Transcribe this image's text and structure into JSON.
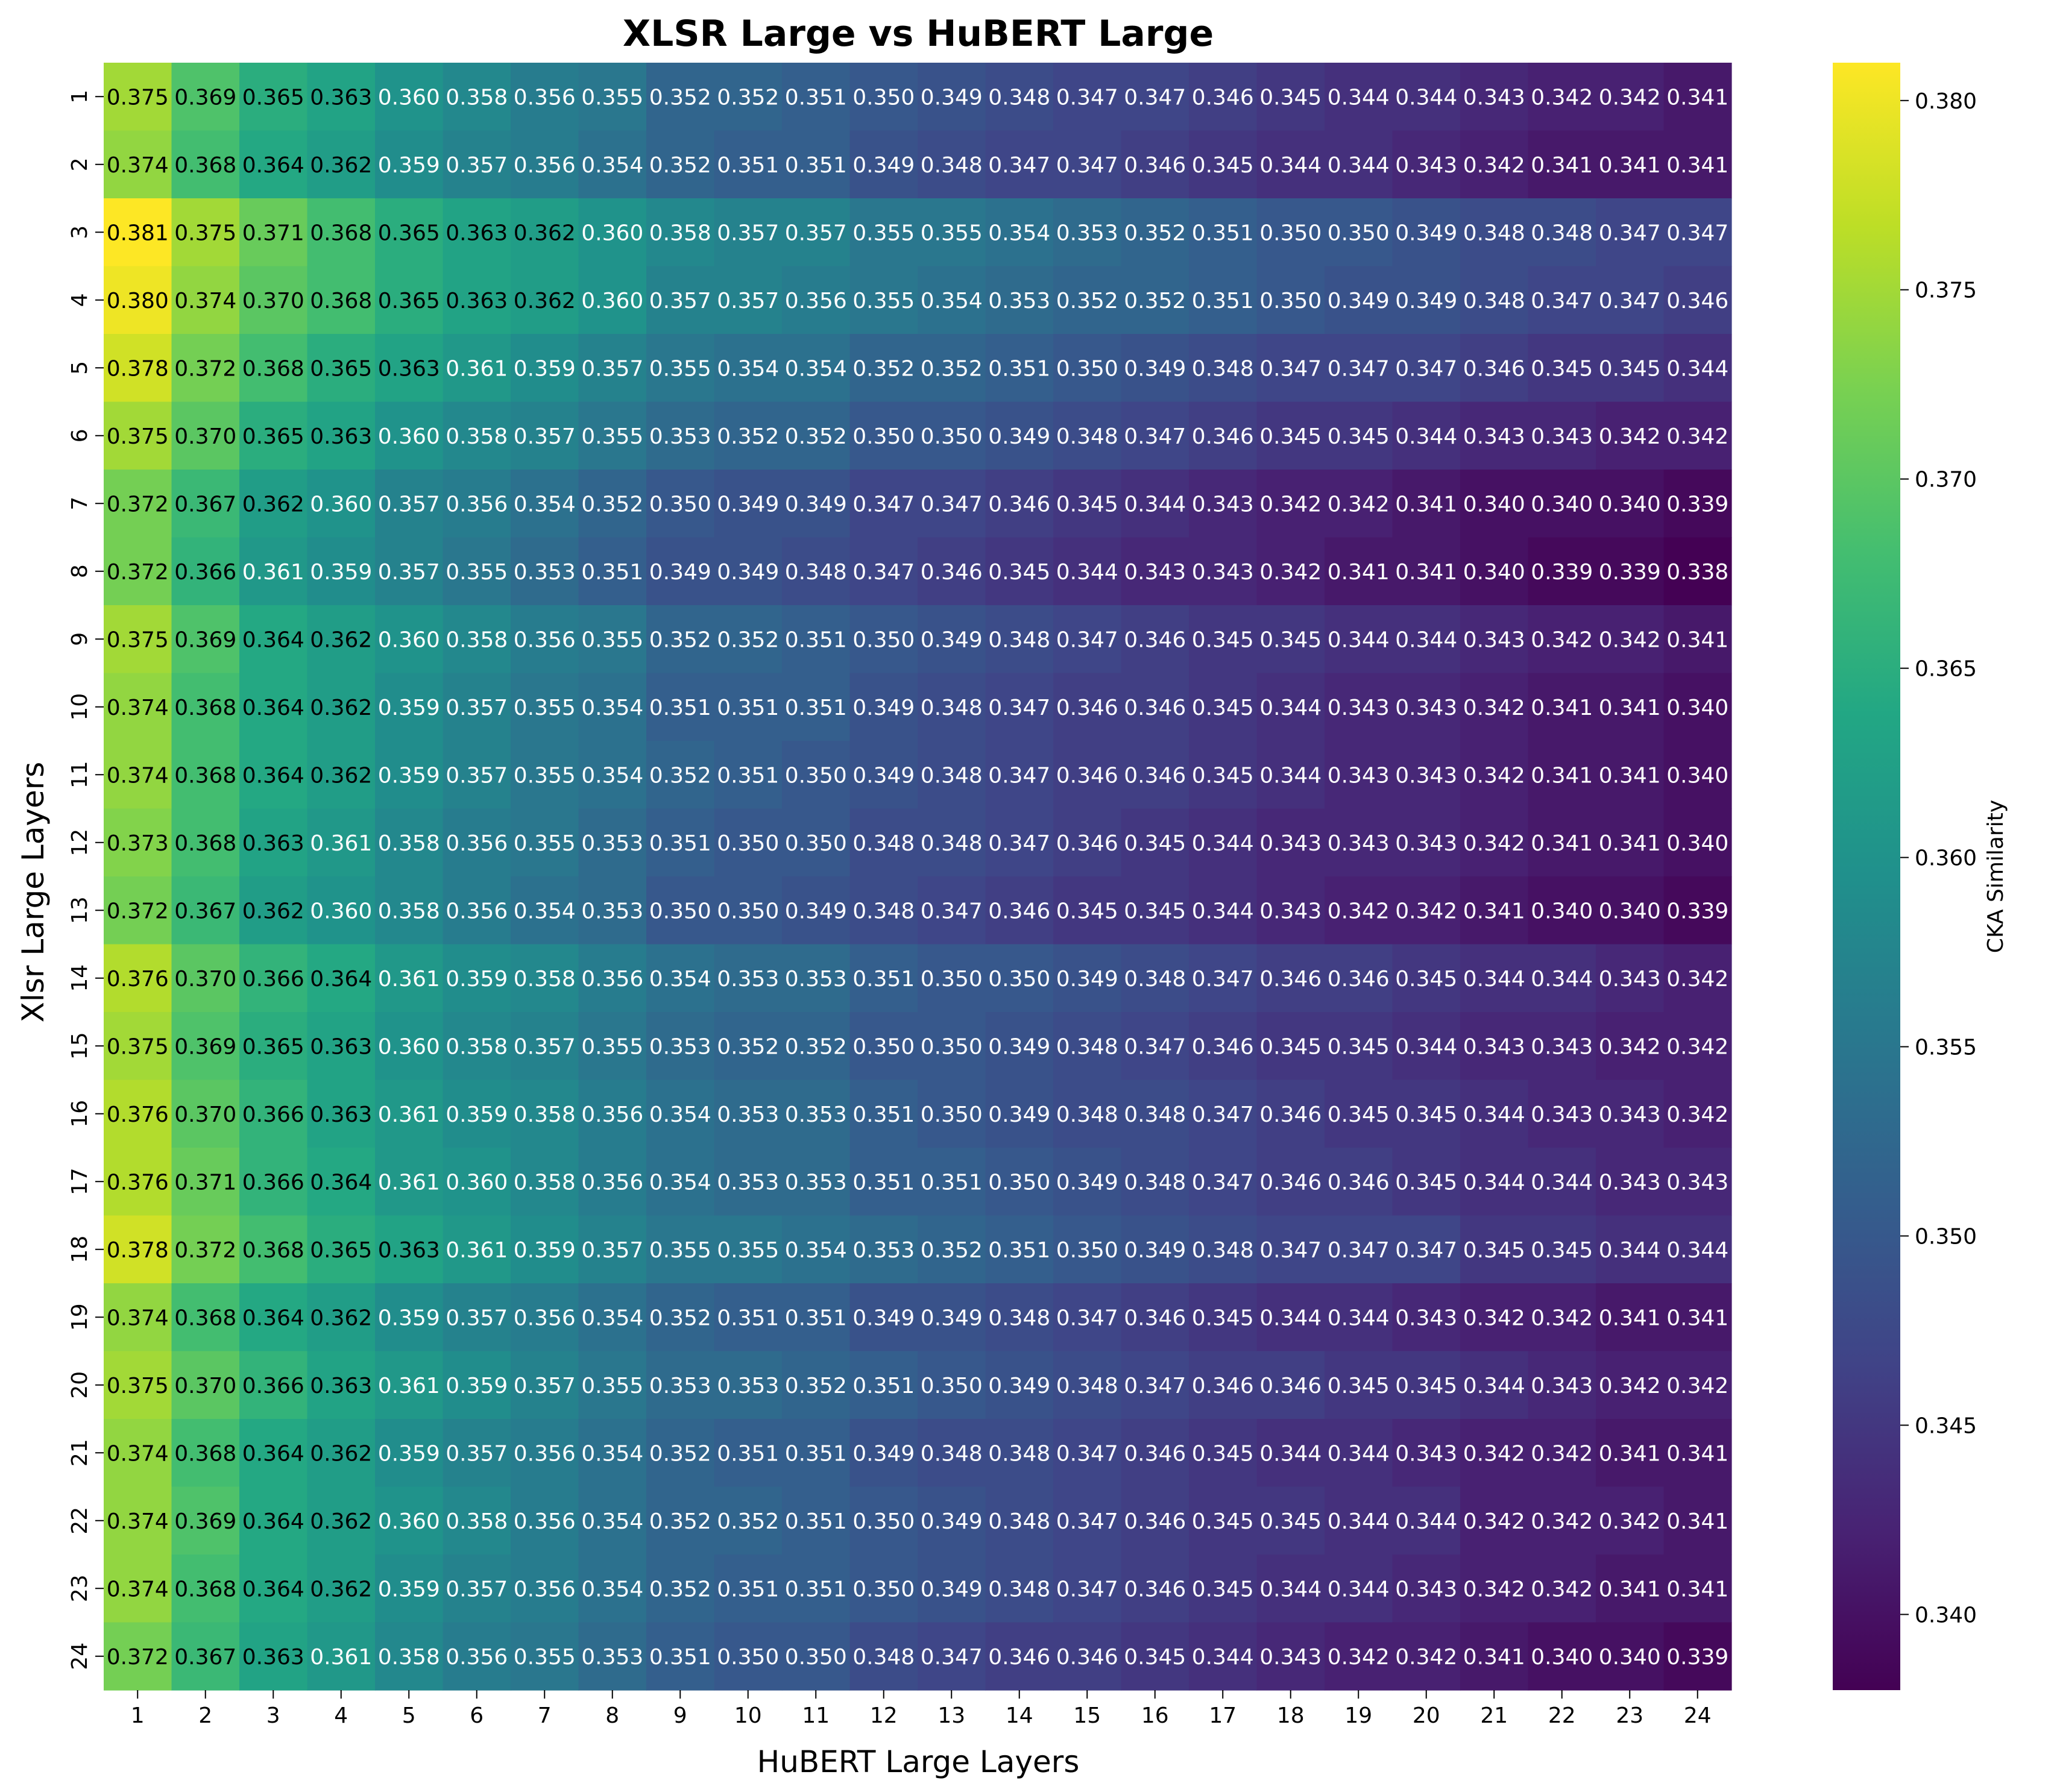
{
  "chart_data": {
    "type": "heatmap",
    "title": "XLSR Large vs HuBERT Large",
    "xlabel": "HuBERT Large Layers",
    "ylabel": "Xlsr Large Layers",
    "colorbar_label": "CKA Similarity",
    "colormap": "viridis",
    "vmin": 0.338,
    "vmax": 0.381,
    "colorbar_ticks": [
      "0.340",
      "0.345",
      "0.350",
      "0.355",
      "0.360",
      "0.365",
      "0.370",
      "0.375",
      "0.380"
    ],
    "x_ticks": [
      "1",
      "2",
      "3",
      "4",
      "5",
      "6",
      "7",
      "8",
      "9",
      "10",
      "11",
      "12",
      "13",
      "14",
      "15",
      "16",
      "17",
      "18",
      "19",
      "20",
      "21",
      "22",
      "23",
      "24"
    ],
    "y_ticks": [
      "1",
      "2",
      "3",
      "4",
      "5",
      "6",
      "7",
      "8",
      "9",
      "10",
      "11",
      "12",
      "13",
      "14",
      "15",
      "16",
      "17",
      "18",
      "19",
      "20",
      "21",
      "22",
      "23",
      "24"
    ],
    "values": [
      [
        0.375,
        0.369,
        0.365,
        0.363,
        0.36,
        0.358,
        0.356,
        0.355,
        0.352,
        0.352,
        0.351,
        0.35,
        0.349,
        0.348,
        0.347,
        0.347,
        0.346,
        0.345,
        0.344,
        0.344,
        0.343,
        0.342,
        0.342,
        0.341
      ],
      [
        0.374,
        0.368,
        0.364,
        0.362,
        0.359,
        0.357,
        0.356,
        0.354,
        0.352,
        0.351,
        0.351,
        0.349,
        0.348,
        0.347,
        0.347,
        0.346,
        0.345,
        0.344,
        0.344,
        0.343,
        0.342,
        0.341,
        0.341,
        0.341
      ],
      [
        0.381,
        0.375,
        0.371,
        0.368,
        0.365,
        0.363,
        0.362,
        0.36,
        0.358,
        0.357,
        0.357,
        0.355,
        0.355,
        0.354,
        0.353,
        0.352,
        0.351,
        0.35,
        0.35,
        0.349,
        0.348,
        0.348,
        0.347,
        0.347
      ],
      [
        0.38,
        0.374,
        0.37,
        0.368,
        0.365,
        0.363,
        0.362,
        0.36,
        0.357,
        0.357,
        0.356,
        0.355,
        0.354,
        0.353,
        0.352,
        0.352,
        0.351,
        0.35,
        0.349,
        0.349,
        0.348,
        0.347,
        0.347,
        0.346
      ],
      [
        0.378,
        0.372,
        0.368,
        0.365,
        0.363,
        0.361,
        0.359,
        0.357,
        0.355,
        0.354,
        0.354,
        0.352,
        0.352,
        0.351,
        0.35,
        0.349,
        0.348,
        0.347,
        0.347,
        0.347,
        0.346,
        0.345,
        0.345,
        0.344
      ],
      [
        0.375,
        0.37,
        0.365,
        0.363,
        0.36,
        0.358,
        0.357,
        0.355,
        0.353,
        0.352,
        0.352,
        0.35,
        0.35,
        0.349,
        0.348,
        0.347,
        0.346,
        0.345,
        0.345,
        0.344,
        0.343,
        0.343,
        0.342,
        0.342
      ],
      [
        0.372,
        0.367,
        0.362,
        0.36,
        0.357,
        0.356,
        0.354,
        0.352,
        0.35,
        0.349,
        0.349,
        0.347,
        0.347,
        0.346,
        0.345,
        0.344,
        0.343,
        0.342,
        0.342,
        0.341,
        0.34,
        0.34,
        0.34,
        0.339
      ],
      [
        0.372,
        0.366,
        0.361,
        0.359,
        0.357,
        0.355,
        0.353,
        0.351,
        0.349,
        0.349,
        0.348,
        0.347,
        0.346,
        0.345,
        0.344,
        0.343,
        0.343,
        0.342,
        0.341,
        0.341,
        0.34,
        0.339,
        0.339,
        0.338
      ],
      [
        0.375,
        0.369,
        0.364,
        0.362,
        0.36,
        0.358,
        0.356,
        0.355,
        0.352,
        0.352,
        0.351,
        0.35,
        0.349,
        0.348,
        0.347,
        0.346,
        0.345,
        0.345,
        0.344,
        0.344,
        0.343,
        0.342,
        0.342,
        0.341
      ],
      [
        0.374,
        0.368,
        0.364,
        0.362,
        0.359,
        0.357,
        0.355,
        0.354,
        0.351,
        0.351,
        0.351,
        0.349,
        0.348,
        0.347,
        0.346,
        0.346,
        0.345,
        0.344,
        0.343,
        0.343,
        0.342,
        0.341,
        0.341,
        0.34
      ],
      [
        0.374,
        0.368,
        0.364,
        0.362,
        0.359,
        0.357,
        0.355,
        0.354,
        0.352,
        0.351,
        0.35,
        0.349,
        0.348,
        0.347,
        0.346,
        0.346,
        0.345,
        0.344,
        0.343,
        0.343,
        0.342,
        0.341,
        0.341,
        0.34
      ],
      [
        0.373,
        0.368,
        0.363,
        0.361,
        0.358,
        0.356,
        0.355,
        0.353,
        0.351,
        0.35,
        0.35,
        0.348,
        0.348,
        0.347,
        0.346,
        0.345,
        0.344,
        0.343,
        0.343,
        0.343,
        0.342,
        0.341,
        0.341,
        0.34
      ],
      [
        0.372,
        0.367,
        0.362,
        0.36,
        0.358,
        0.356,
        0.354,
        0.353,
        0.35,
        0.35,
        0.349,
        0.348,
        0.347,
        0.346,
        0.345,
        0.345,
        0.344,
        0.343,
        0.342,
        0.342,
        0.341,
        0.34,
        0.34,
        0.339
      ],
      [
        0.376,
        0.37,
        0.366,
        0.364,
        0.361,
        0.359,
        0.358,
        0.356,
        0.354,
        0.353,
        0.353,
        0.351,
        0.35,
        0.35,
        0.349,
        0.348,
        0.347,
        0.346,
        0.346,
        0.345,
        0.344,
        0.344,
        0.343,
        0.342
      ],
      [
        0.375,
        0.369,
        0.365,
        0.363,
        0.36,
        0.358,
        0.357,
        0.355,
        0.353,
        0.352,
        0.352,
        0.35,
        0.35,
        0.349,
        0.348,
        0.347,
        0.346,
        0.345,
        0.345,
        0.344,
        0.343,
        0.343,
        0.342,
        0.342
      ],
      [
        0.376,
        0.37,
        0.366,
        0.363,
        0.361,
        0.359,
        0.358,
        0.356,
        0.354,
        0.353,
        0.353,
        0.351,
        0.35,
        0.349,
        0.348,
        0.348,
        0.347,
        0.346,
        0.345,
        0.345,
        0.344,
        0.343,
        0.343,
        0.342
      ],
      [
        0.376,
        0.371,
        0.366,
        0.364,
        0.361,
        0.36,
        0.358,
        0.356,
        0.354,
        0.353,
        0.353,
        0.351,
        0.351,
        0.35,
        0.349,
        0.348,
        0.347,
        0.346,
        0.346,
        0.345,
        0.344,
        0.344,
        0.343,
        0.343
      ],
      [
        0.378,
        0.372,
        0.368,
        0.365,
        0.363,
        0.361,
        0.359,
        0.357,
        0.355,
        0.355,
        0.354,
        0.353,
        0.352,
        0.351,
        0.35,
        0.349,
        0.348,
        0.347,
        0.347,
        0.347,
        0.345,
        0.345,
        0.344,
        0.344
      ],
      [
        0.374,
        0.368,
        0.364,
        0.362,
        0.359,
        0.357,
        0.356,
        0.354,
        0.352,
        0.351,
        0.351,
        0.349,
        0.349,
        0.348,
        0.347,
        0.346,
        0.345,
        0.344,
        0.344,
        0.343,
        0.342,
        0.342,
        0.341,
        0.341
      ],
      [
        0.375,
        0.37,
        0.366,
        0.363,
        0.361,
        0.359,
        0.357,
        0.355,
        0.353,
        0.353,
        0.352,
        0.351,
        0.35,
        0.349,
        0.348,
        0.347,
        0.346,
        0.346,
        0.345,
        0.345,
        0.344,
        0.343,
        0.342,
        0.342
      ],
      [
        0.374,
        0.368,
        0.364,
        0.362,
        0.359,
        0.357,
        0.356,
        0.354,
        0.352,
        0.351,
        0.351,
        0.349,
        0.348,
        0.348,
        0.347,
        0.346,
        0.345,
        0.344,
        0.344,
        0.343,
        0.342,
        0.342,
        0.341,
        0.341
      ],
      [
        0.374,
        0.369,
        0.364,
        0.362,
        0.36,
        0.358,
        0.356,
        0.354,
        0.352,
        0.352,
        0.351,
        0.35,
        0.349,
        0.348,
        0.347,
        0.346,
        0.345,
        0.345,
        0.344,
        0.344,
        0.342,
        0.342,
        0.342,
        0.341
      ],
      [
        0.374,
        0.368,
        0.364,
        0.362,
        0.359,
        0.357,
        0.356,
        0.354,
        0.352,
        0.351,
        0.351,
        0.35,
        0.349,
        0.348,
        0.347,
        0.346,
        0.345,
        0.344,
        0.344,
        0.343,
        0.342,
        0.342,
        0.341,
        0.341
      ],
      [
        0.372,
        0.367,
        0.363,
        0.361,
        0.358,
        0.356,
        0.355,
        0.353,
        0.351,
        0.35,
        0.35,
        0.348,
        0.347,
        0.346,
        0.346,
        0.345,
        0.344,
        0.343,
        0.342,
        0.342,
        0.341,
        0.34,
        0.34,
        0.339
      ]
    ]
  }
}
